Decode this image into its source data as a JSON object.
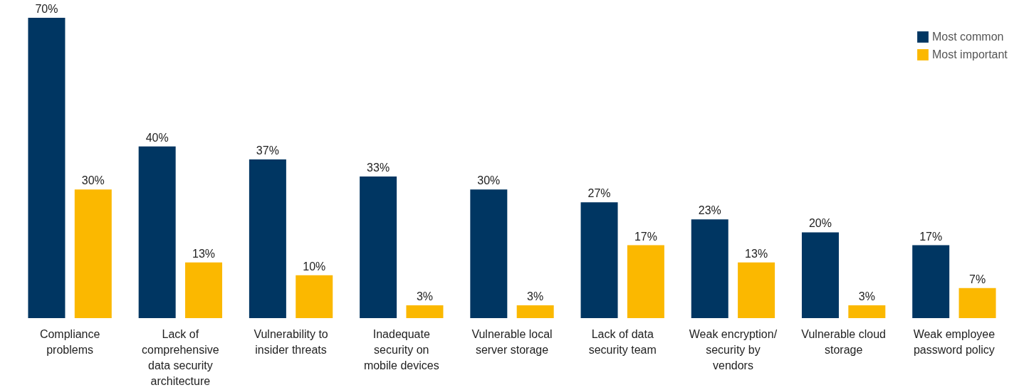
{
  "chart_data": {
    "type": "bar",
    "categories": [
      "Compliance problems",
      "Lack of comprehensive data security architecture",
      "Vulnerability to insider threats",
      "Inadequate security on mobile devices",
      "Vulnerable local server storage",
      "Lack of data security team",
      "Weak encryption/ security by vendors",
      "Vulnerable cloud storage",
      "Weak employee password policy"
    ],
    "series": [
      {
        "name": "Most common",
        "color": "#003662",
        "values": [
          70,
          40,
          37,
          33,
          30,
          27,
          23,
          20,
          17
        ],
        "value_labels": [
          "70%",
          "40%",
          "37%",
          "33%",
          "30%",
          "27%",
          "23%",
          "20%",
          "17%"
        ]
      },
      {
        "name": "Most important",
        "color": "#fbb800",
        "values": [
          30,
          13,
          10,
          3,
          3,
          17,
          13,
          3,
          7
        ],
        "value_labels": [
          "30%",
          "13%",
          "10%",
          "3%",
          "3%",
          "17%",
          "13%",
          "3%",
          "7%"
        ]
      }
    ],
    "legend": "top right",
    "tick_labels": "x",
    "grid": false
  }
}
